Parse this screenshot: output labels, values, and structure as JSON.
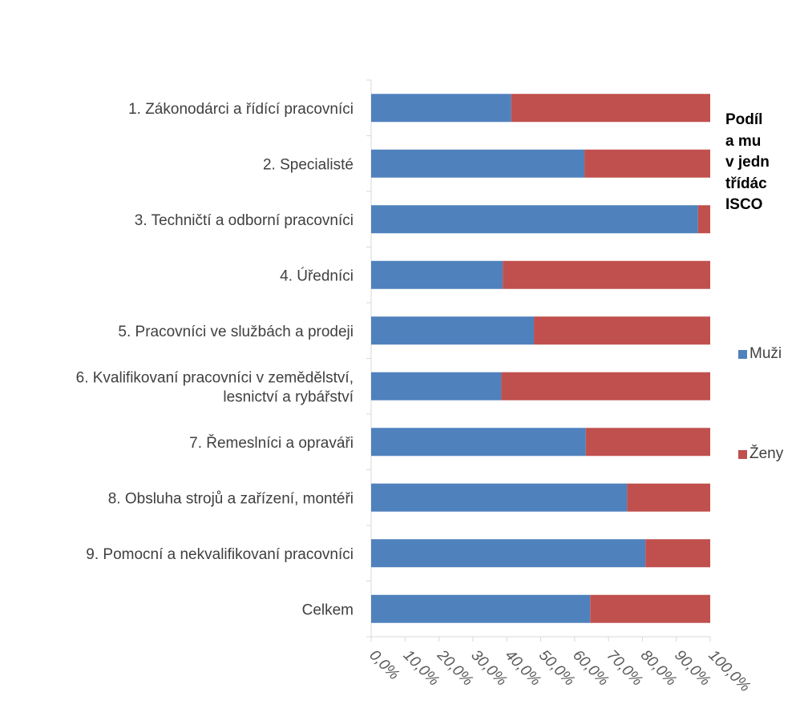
{
  "chart_data": {
    "type": "bar",
    "orientation": "horizontal",
    "stacked": "percent",
    "title_lines": [
      "Podíl",
      "a mu",
      "v jedn",
      "třídác",
      "ISCO"
    ],
    "categories": [
      [
        "1. Zákonodárci a řídící pracovníci"
      ],
      [
        "2. Specialisté"
      ],
      [
        "3. Techničtí a odborní pracovníci"
      ],
      [
        "4. Úředníci"
      ],
      [
        "5. Pracovníci ve službách a prodeji"
      ],
      [
        "6. Kvalifikovaní pracovníci v zemědělství,",
        "lesnictví a rybářství"
      ],
      [
        "7. Řemeslníci a opraváři"
      ],
      [
        "8. Obsluha strojů a zařízení, montéři"
      ],
      [
        "9. Pomocní a nekvalifikovaní pracovníci"
      ],
      [
        "Celkem"
      ]
    ],
    "series": [
      {
        "name": "Muži",
        "color": "#4f81bd",
        "values": [
          41.3,
          62.9,
          96.4,
          38.8,
          48.0,
          38.4,
          63.3,
          75.5,
          80.9,
          64.6
        ]
      },
      {
        "name": "Ženy",
        "color": "#c0504d",
        "values": [
          58.7,
          37.1,
          3.6,
          61.2,
          52.0,
          61.6,
          36.7,
          24.5,
          19.1,
          35.4
        ]
      }
    ],
    "x_ticks": [
      "0,0%",
      "10,0%",
      "20,0%",
      "30,0%",
      "40,0%",
      "50,0%",
      "60,0%",
      "70,0%",
      "80,0%",
      "90,0%",
      "100,0%"
    ],
    "xlim": [
      0,
      100
    ],
    "grid": false,
    "legend_position": "right"
  }
}
